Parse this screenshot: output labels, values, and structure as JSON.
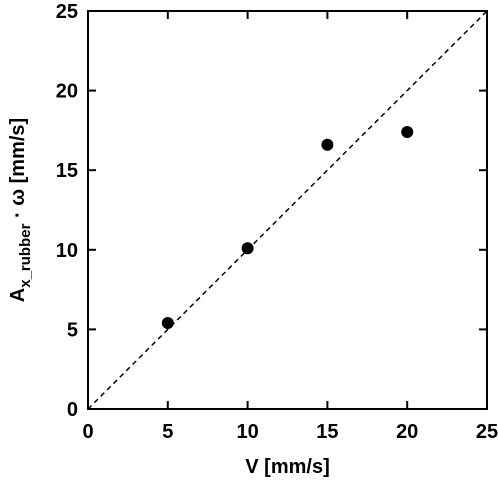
{
  "chart_data": {
    "type": "scatter",
    "title": "",
    "xlabel": "V [mm/s]",
    "ylabel": {
      "main": "A",
      "subscript": "x_rubber",
      "suffix": " · ω [mm/s]"
    },
    "xlim": [
      0,
      25
    ],
    "ylim": [
      0,
      25
    ],
    "xticks": [
      0,
      5,
      10,
      15,
      20,
      25
    ],
    "yticks": [
      0,
      5,
      10,
      15,
      20,
      25
    ],
    "grid": false,
    "legend": "none",
    "series": [
      {
        "marker": "filled-circle",
        "color": "#000000",
        "points": [
          {
            "x": 5,
            "y": 5.4
          },
          {
            "x": 10,
            "y": 10.1
          },
          {
            "x": 15,
            "y": 16.6
          },
          {
            "x": 20,
            "y": 17.4
          }
        ]
      }
    ],
    "reference_line": {
      "style": "dashed",
      "color": "#000000",
      "from": {
        "x": 0,
        "y": 0
      },
      "to": {
        "x": 25,
        "y": 25
      }
    }
  }
}
